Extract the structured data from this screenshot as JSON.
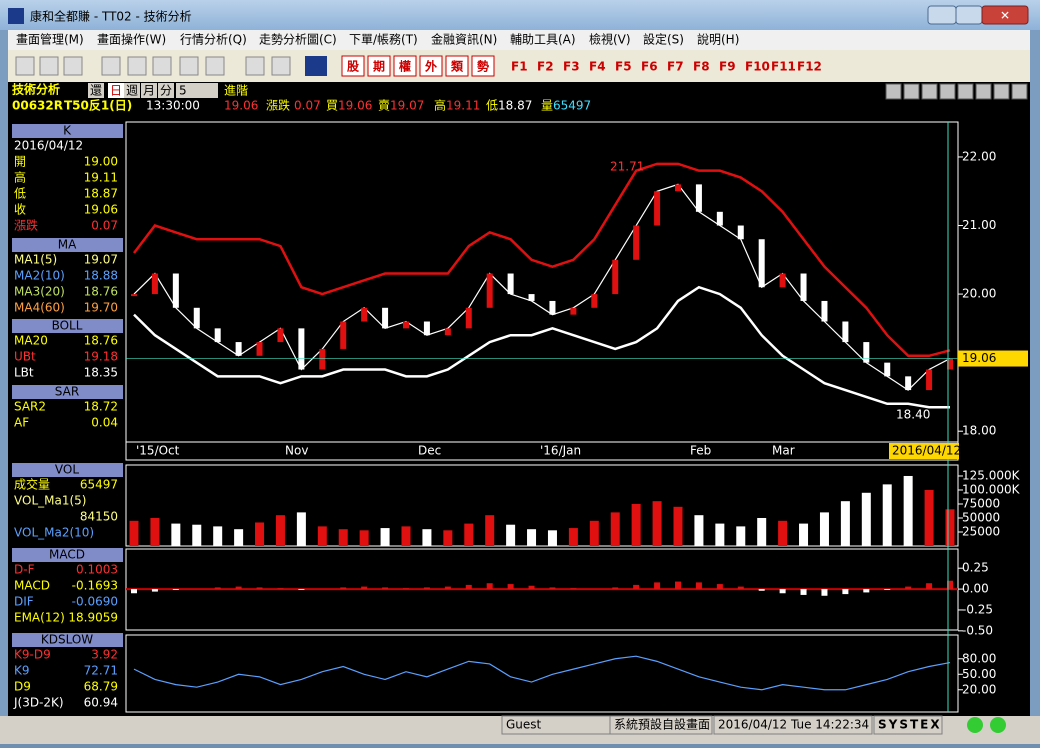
{
  "window": {
    "title": "康和全都賺 - TT02 - 技術分析"
  },
  "menu": [
    "畫面管理(M)",
    "畫面操作(W)",
    "行情分析(Q)",
    "走勢分析圖(C)",
    "下單/帳務(T)",
    "金融資訊(N)",
    "輔助工具(A)",
    "檢視(V)",
    "設定(S)",
    "說明(H)"
  ],
  "toolbar": {
    "buttons": [
      "股",
      "期",
      "權",
      "外",
      "類",
      "勢"
    ],
    "function_keys": [
      "F1",
      "F2",
      "F3",
      "F4",
      "F5",
      "F6",
      "F7",
      "F8",
      "F9",
      "F10",
      "F11",
      "F12"
    ]
  },
  "info": {
    "section": "技術分析",
    "periods": [
      "還",
      "日",
      "週",
      "月",
      "分"
    ],
    "period_count": "5",
    "mode": "進階",
    "symbol": "00632R",
    "name": "T50反1(日)",
    "time": "13:30:00",
    "price": "19.06",
    "change_label": "漲跌",
    "change": "0.07",
    "bid_label": "買",
    "bid": "19.06",
    "ask_label": "賣",
    "ask": "19.07",
    "high_label": "高",
    "high": "19.11",
    "low_label": "低",
    "low": "18.87",
    "vol_label": "量",
    "vol": "65497"
  },
  "panels": [
    {
      "title": "K",
      "rows": [
        {
          "label": "2016/04/12",
          "color": "#ffffff"
        },
        {
          "label": "開",
          "value": "19.00",
          "color": "#ffff00"
        },
        {
          "label": "高",
          "value": "19.11",
          "color": "#ffff00"
        },
        {
          "label": "低",
          "value": "18.87",
          "color": "#ffff00"
        },
        {
          "label": "收",
          "value": "19.06",
          "color": "#ffff00"
        },
        {
          "label": "漲跌",
          "value": "0.07",
          "color": "#ff3030"
        }
      ]
    },
    {
      "title": "MA",
      "rows": [
        {
          "label": "MA1(5)",
          "value": "19.07",
          "color": "#ffff80"
        },
        {
          "label": "MA2(10)",
          "value": "18.88",
          "color": "#5aa0ff"
        },
        {
          "label": "MA3(20)",
          "value": "18.76",
          "color": "#c0e060"
        },
        {
          "label": "MA4(60)",
          "value": "19.70",
          "color": "#ffa040"
        }
      ]
    },
    {
      "title": "BOLL",
      "rows": [
        {
          "label": "MA20",
          "value": "18.76",
          "color": "#ffff00"
        },
        {
          "label": "UBt",
          "value": "19.18",
          "color": "#ff3030"
        },
        {
          "label": "LBt",
          "value": "18.35",
          "color": "#ffffff"
        }
      ]
    },
    {
      "title": "SAR",
      "rows": [
        {
          "label": "SAR2",
          "value": "18.72",
          "color": "#ffff00"
        },
        {
          "label": "AF",
          "value": "0.04",
          "color": "#ffff00"
        }
      ]
    },
    {
      "title": "VOL",
      "rows": [
        {
          "label": "成交量",
          "value": "65497",
          "color": "#ffff00"
        },
        {
          "label": "VOL_Ma1(5)",
          "color": "#ffff80"
        },
        {
          "value": "84150",
          "color": "#ffff80"
        },
        {
          "label": "VOL_Ma2(10)",
          "color": "#5aa0ff"
        }
      ]
    },
    {
      "title": "MACD",
      "rows": [
        {
          "label": "D-F",
          "value": "0.1003",
          "color": "#ff3030"
        },
        {
          "label": "MACD",
          "value": "-0.1693",
          "color": "#ffff00"
        },
        {
          "label": "DIF",
          "value": "-0.0690",
          "color": "#5aa0ff"
        },
        {
          "label": "EMA(12)",
          "value": "18.9059",
          "color": "#ffff00"
        }
      ]
    },
    {
      "title": "KDSLOW",
      "rows": [
        {
          "label": "K9-D9",
          "value": "3.92",
          "color": "#ff3030"
        },
        {
          "label": "K9",
          "value": "72.71",
          "color": "#5aa0ff"
        },
        {
          "label": "D9",
          "value": "68.79",
          "color": "#ffff00"
        },
        {
          "label": "J(3D-2K)",
          "value": "60.94",
          "color": "#ffffff"
        }
      ]
    }
  ],
  "chart_data": [
    {
      "type": "line",
      "months": [
        "'15/Oct",
        "Nov",
        "Dec",
        "'16/Jan",
        "Feb",
        "Mar"
      ],
      "date_tag": "2016/04/12",
      "price_tag": "19.06",
      "annotations": [
        "21.71",
        "18.40"
      ],
      "ylim": [
        17.58,
        22.51
      ],
      "yticks": [
        {
          "value": 22,
          "label": "22.00"
        },
        {
          "value": 21,
          "label": "21.00"
        },
        {
          "value": 20,
          "label": "20.00"
        },
        {
          "value": 18,
          "label": "18.00"
        }
      ],
      "series": [
        {
          "name": "收",
          "color": "#ffffff",
          "values": [
            20.0,
            20.3,
            19.8,
            19.5,
            19.3,
            19.1,
            19.3,
            19.5,
            18.9,
            19.2,
            19.6,
            19.8,
            19.5,
            19.6,
            19.4,
            19.5,
            19.8,
            20.3,
            20.0,
            19.9,
            19.7,
            19.8,
            20.0,
            20.5,
            21.0,
            21.5,
            21.6,
            21.2,
            21.0,
            20.8,
            20.1,
            20.3,
            19.9,
            19.6,
            19.3,
            19.0,
            18.8,
            18.6,
            18.9,
            19.06
          ]
        },
        {
          "name": "UBt",
          "color": "#e01010",
          "values": [
            20.6,
            21.0,
            20.9,
            20.8,
            20.8,
            20.8,
            20.8,
            20.7,
            20.1,
            20.0,
            20.1,
            20.2,
            20.3,
            20.3,
            20.3,
            20.3,
            20.7,
            20.9,
            20.8,
            20.5,
            20.4,
            20.5,
            20.8,
            21.3,
            21.8,
            21.9,
            21.9,
            21.8,
            21.8,
            21.7,
            21.5,
            21.2,
            20.8,
            20.4,
            20.1,
            19.8,
            19.4,
            19.1,
            19.1,
            19.18
          ]
        },
        {
          "name": "LBt",
          "color": "#ffffff",
          "values": [
            19.7,
            19.4,
            19.2,
            19.0,
            18.8,
            18.8,
            18.8,
            18.7,
            18.8,
            18.8,
            18.9,
            18.9,
            18.9,
            18.8,
            18.8,
            18.9,
            19.1,
            19.3,
            19.4,
            19.4,
            19.5,
            19.4,
            19.3,
            19.2,
            19.3,
            19.5,
            19.9,
            20.1,
            20.0,
            19.8,
            19.4,
            19.1,
            18.9,
            18.7,
            18.6,
            18.5,
            18.4,
            18.4,
            18.35,
            18.35
          ]
        }
      ]
    },
    {
      "type": "bar",
      "ylim": [
        0,
        144600
      ],
      "yticks": [
        {
          "value": 125000,
          "label": "125.000K"
        },
        {
          "value": 100000,
          "label": "100.000K"
        },
        {
          "value": 75000,
          "label": "75000"
        },
        {
          "value": 50000,
          "label": "50000"
        },
        {
          "value": 25000,
          "label": "25000"
        }
      ],
      "color": "#ffffff",
      "values": [
        45000,
        50000,
        40000,
        38000,
        35000,
        30000,
        42000,
        55000,
        60000,
        35000,
        30000,
        28000,
        32000,
        35000,
        30000,
        28000,
        40000,
        55000,
        38000,
        30000,
        28000,
        32000,
        45000,
        60000,
        75000,
        80000,
        70000,
        55000,
        40000,
        35000,
        50000,
        45000,
        40000,
        60000,
        80000,
        95000,
        110000,
        125000,
        100000,
        65497
      ]
    },
    {
      "type": "bar",
      "ylim": [
        -0.49,
        0.48
      ],
      "yticks": [
        {
          "value": 0.25,
          "label": "0.25"
        },
        {
          "value": 0,
          "label": "0.00"
        },
        {
          "value": -0.25,
          "label": "-0.25"
        },
        {
          "value": -0.5,
          "label": "-0.50"
        }
      ],
      "color": "#e01010",
      "values": [
        -0.05,
        -0.03,
        -0.01,
        0.0,
        0.02,
        0.03,
        0.02,
        0.01,
        -0.01,
        0.0,
        0.02,
        0.03,
        0.02,
        0.01,
        0.02,
        0.03,
        0.05,
        0.07,
        0.06,
        0.04,
        0.02,
        0.01,
        0.0,
        0.02,
        0.05,
        0.08,
        0.09,
        0.08,
        0.06,
        0.03,
        -0.02,
        -0.05,
        -0.07,
        -0.08,
        -0.06,
        -0.04,
        -0.01,
        0.03,
        0.07,
        0.1003
      ]
    },
    {
      "type": "line",
      "ylim": [
        -23,
        126
      ],
      "yticks": [
        {
          "value": 80,
          "label": "80.00"
        },
        {
          "value": 50,
          "label": "50.00"
        },
        {
          "value": 20,
          "label": "20.00"
        }
      ],
      "series": [
        {
          "name": "K9",
          "color": "#5aa0ff",
          "values": [
            60,
            40,
            30,
            25,
            35,
            50,
            45,
            30,
            40,
            55,
            65,
            50,
            40,
            55,
            45,
            60,
            75,
            70,
            45,
            35,
            50,
            60,
            70,
            80,
            85,
            75,
            60,
            45,
            35,
            25,
            20,
            30,
            25,
            20,
            20,
            30,
            40,
            55,
            65,
            72.71
          ]
        }
      ]
    }
  ],
  "status": {
    "user": "Guest",
    "layout": "系統預設自設畫面",
    "datetime": "2016/04/12 Tue 14:22:34",
    "brand": "SYSTEX"
  }
}
